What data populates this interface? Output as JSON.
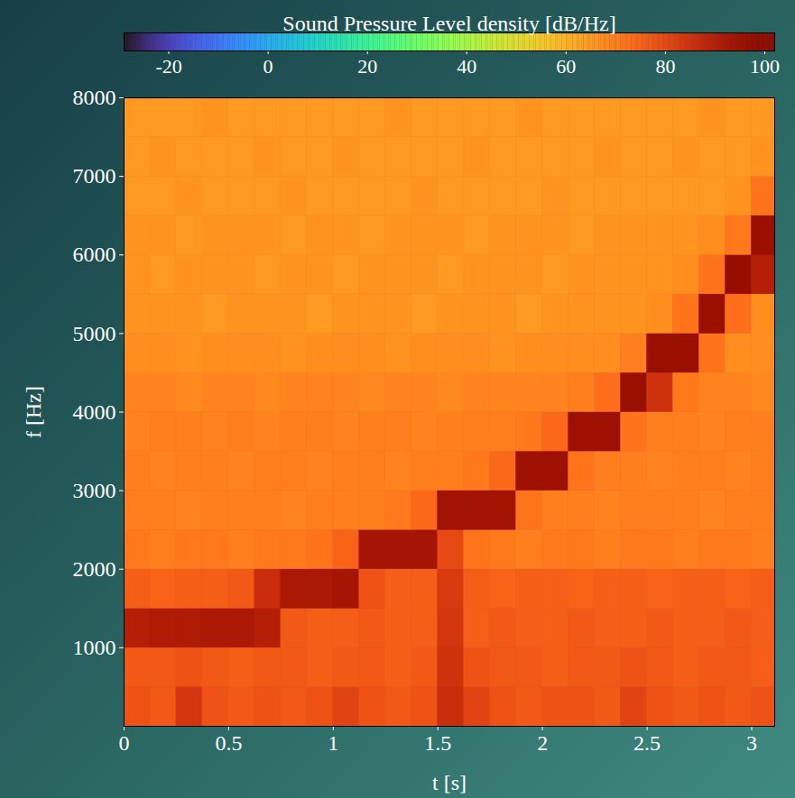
{
  "chart_data": {
    "type": "heatmap",
    "x_label": "t [s]",
    "y_label": "f [Hz]",
    "xlim": [
      0,
      3.11
    ],
    "ylim": [
      0,
      8000
    ],
    "xticks": [
      0,
      0.5,
      1,
      1.5,
      2,
      2.5,
      3
    ],
    "yticks": [
      1000,
      2000,
      3000,
      4000,
      5000,
      6000,
      7000,
      8000
    ],
    "x_bins": [
      0,
      0.125,
      0.25,
      0.375,
      0.5,
      0.625,
      0.75,
      0.875,
      1,
      1.125,
      1.25,
      1.375,
      1.5,
      1.625,
      1.75,
      1.875,
      2,
      2.125,
      2.25,
      2.375,
      2.5,
      2.625,
      2.75,
      2.875,
      3,
      3.11
    ],
    "y_bins": [
      0,
      500,
      1000,
      1500,
      2000,
      2500,
      3000,
      3500,
      4000,
      4500,
      5000,
      5500,
      6000,
      6500,
      7000,
      7500,
      8000
    ],
    "cells": [
      [
        78,
        77,
        84,
        78,
        77,
        78,
        77,
        78,
        81,
        78,
        77,
        78,
        86,
        81,
        78,
        77,
        78,
        78,
        77,
        81,
        78,
        77,
        78,
        77,
        78
      ],
      [
        77,
        77,
        78,
        77,
        76,
        77,
        77,
        76,
        77,
        77,
        76,
        77,
        85,
        78,
        77,
        77,
        76,
        77,
        77,
        78,
        77,
        76,
        77,
        77,
        76
      ],
      [
        90,
        91,
        91,
        92,
        92,
        90,
        77,
        76,
        76,
        77,
        76,
        76,
        84,
        76,
        77,
        76,
        76,
        77,
        76,
        76,
        77,
        76,
        76,
        77,
        76
      ],
      [
        76,
        75,
        76,
        76,
        77,
        86,
        92,
        92,
        93,
        78,
        76,
        76,
        83,
        76,
        75,
        76,
        76,
        75,
        76,
        76,
        75,
        76,
        76,
        75,
        76
      ],
      [
        71,
        70,
        71,
        71,
        70,
        71,
        71,
        72,
        75,
        93,
        93,
        93,
        80,
        72,
        71,
        70,
        71,
        71,
        70,
        71,
        71,
        70,
        71,
        71,
        70
      ],
      [
        70,
        70,
        69,
        70,
        70,
        70,
        69,
        70,
        70,
        70,
        71,
        74,
        94,
        94,
        94,
        72,
        70,
        70,
        69,
        70,
        70,
        70,
        69,
        70,
        70
      ],
      [
        70,
        69,
        70,
        70,
        69,
        70,
        70,
        69,
        70,
        70,
        69,
        70,
        70,
        71,
        74,
        95,
        95,
        72,
        70,
        70,
        69,
        70,
        70,
        69,
        70
      ],
      [
        69,
        70,
        70,
        69,
        70,
        69,
        70,
        70,
        69,
        70,
        70,
        69,
        70,
        70,
        70,
        71,
        74,
        95,
        95,
        72,
        70,
        70,
        69,
        70,
        70
      ],
      [
        69,
        69,
        68,
        69,
        69,
        68,
        69,
        69,
        69,
        68,
        69,
        69,
        68,
        69,
        69,
        69,
        69,
        70,
        73,
        96,
        85,
        71,
        69,
        69,
        68
      ],
      [
        67,
        67,
        66,
        67,
        67,
        67,
        66,
        67,
        67,
        67,
        66,
        67,
        67,
        67,
        66,
        67,
        67,
        67,
        67,
        70,
        96,
        96,
        72,
        67,
        67
      ],
      [
        66,
        66,
        66,
        65,
        66,
        66,
        66,
        65,
        66,
        66,
        66,
        65,
        66,
        66,
        66,
        65,
        66,
        66,
        66,
        66,
        67,
        72,
        96,
        73,
        67
      ],
      [
        66,
        65,
        66,
        66,
        66,
        65,
        66,
        66,
        65,
        66,
        66,
        66,
        65,
        66,
        66,
        66,
        65,
        66,
        66,
        66,
        66,
        67,
        72,
        97,
        90
      ],
      [
        66,
        66,
        65,
        66,
        66,
        66,
        65,
        66,
        66,
        65,
        66,
        66,
        66,
        65,
        66,
        66,
        66,
        65,
        66,
        66,
        66,
        66,
        67,
        71,
        96
      ],
      [
        65,
        65,
        66,
        65,
        65,
        65,
        66,
        65,
        65,
        65,
        65,
        66,
        65,
        65,
        65,
        65,
        66,
        65,
        65,
        65,
        65,
        65,
        65,
        66,
        72
      ],
      [
        65,
        66,
        65,
        65,
        65,
        66,
        65,
        65,
        66,
        65,
        65,
        65,
        65,
        66,
        65,
        65,
        65,
        65,
        66,
        65,
        65,
        66,
        65,
        65,
        66
      ],
      [
        65,
        65,
        65,
        66,
        65,
        65,
        65,
        65,
        65,
        65,
        66,
        65,
        65,
        65,
        65,
        66,
        65,
        65,
        65,
        65,
        65,
        65,
        66,
        65,
        65
      ]
    ],
    "colorbar": {
      "label": "Sound Pressure Level density [dB/Hz]",
      "lim": [
        -29,
        102
      ],
      "ticks": [
        -20,
        0,
        20,
        40,
        60,
        80,
        100
      ]
    }
  }
}
